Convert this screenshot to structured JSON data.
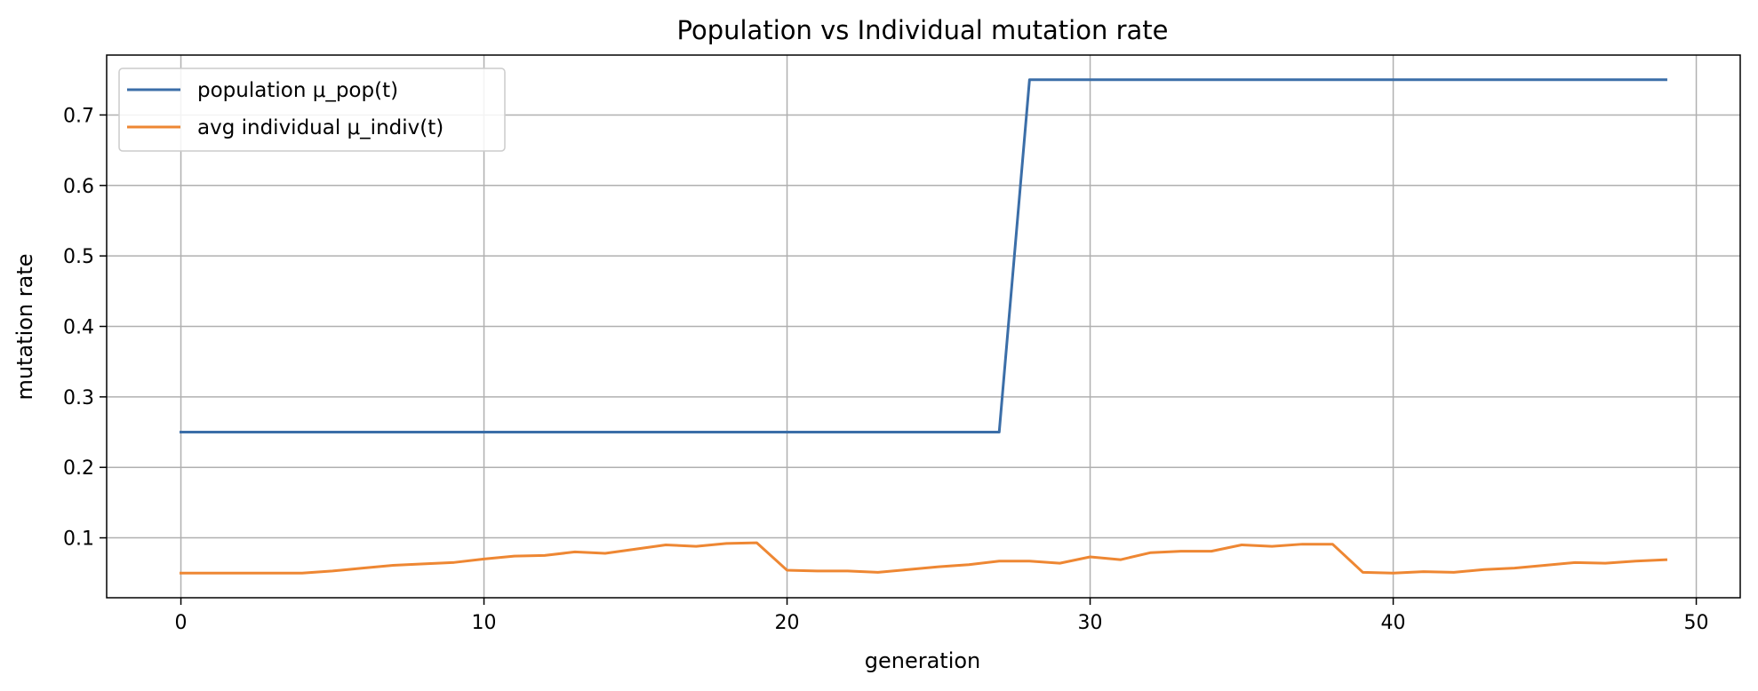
{
  "chart_data": {
    "type": "line",
    "title": "Population vs Individual mutation rate",
    "xlabel": "generation",
    "ylabel": "mutation rate",
    "xlim": [
      -2.45,
      51.45
    ],
    "ylim": [
      0.015,
      0.785
    ],
    "xticks": [
      0,
      10,
      20,
      30,
      40,
      50
    ],
    "yticks": [
      0.1,
      0.2,
      0.3,
      0.4,
      0.5,
      0.6,
      0.7
    ],
    "grid": true,
    "legend_position": "top-left",
    "colors": {
      "population": "#3b6ea8",
      "individual": "#ee8733",
      "grid": "#b0b0b0"
    },
    "x": [
      0,
      1,
      2,
      3,
      4,
      5,
      6,
      7,
      8,
      9,
      10,
      11,
      12,
      13,
      14,
      15,
      16,
      17,
      18,
      19,
      20,
      21,
      22,
      23,
      24,
      25,
      26,
      27,
      28,
      29,
      30,
      31,
      32,
      33,
      34,
      35,
      36,
      37,
      38,
      39,
      40,
      41,
      42,
      43,
      44,
      45,
      46,
      47,
      48,
      49
    ],
    "series": [
      {
        "name": "population μ_pop(t)",
        "color": "#3b6ea8",
        "values": [
          0.25,
          0.25,
          0.25,
          0.25,
          0.25,
          0.25,
          0.25,
          0.25,
          0.25,
          0.25,
          0.25,
          0.25,
          0.25,
          0.25,
          0.25,
          0.25,
          0.25,
          0.25,
          0.25,
          0.25,
          0.25,
          0.25,
          0.25,
          0.25,
          0.25,
          0.25,
          0.25,
          0.25,
          0.75,
          0.75,
          0.75,
          0.75,
          0.75,
          0.75,
          0.75,
          0.75,
          0.75,
          0.75,
          0.75,
          0.75,
          0.75,
          0.75,
          0.75,
          0.75,
          0.75,
          0.75,
          0.75,
          0.75,
          0.75,
          0.75
        ]
      },
      {
        "name": "avg individual μ_indiv(t)",
        "color": "#ee8733",
        "values": [
          0.05,
          0.05,
          0.05,
          0.05,
          0.05,
          0.053,
          0.057,
          0.061,
          0.063,
          0.065,
          0.07,
          0.074,
          0.075,
          0.08,
          0.078,
          0.084,
          0.09,
          0.088,
          0.092,
          0.093,
          0.054,
          0.053,
          0.053,
          0.051,
          0.055,
          0.059,
          0.062,
          0.067,
          0.067,
          0.064,
          0.073,
          0.069,
          0.079,
          0.081,
          0.081,
          0.09,
          0.088,
          0.091,
          0.091,
          0.051,
          0.05,
          0.052,
          0.051,
          0.055,
          0.057,
          0.061,
          0.065,
          0.064,
          0.067,
          0.069
        ]
      }
    ]
  }
}
